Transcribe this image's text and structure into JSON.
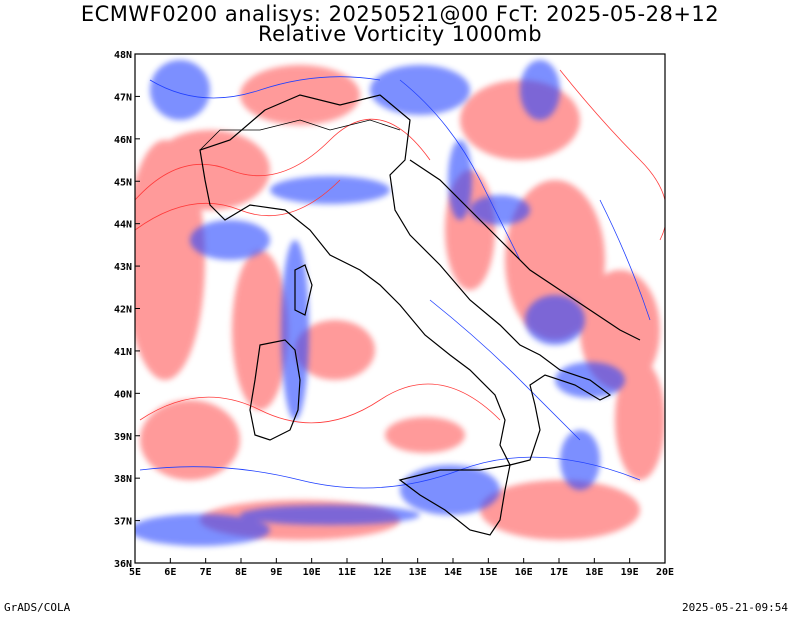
{
  "title_line1": "ECMWF0200 analisys: 20250521@00 FcT: 2025-05-28+12",
  "title_line2": "Relative Vorticity 1000mb",
  "footer_left": "GrADS/COLA",
  "footer_right": "2025-05-21-09:54",
  "lon_labels": [
    "5E",
    "6E",
    "7E",
    "8E",
    "9E",
    "10E",
    "11E",
    "12E",
    "13E",
    "14E",
    "15E",
    "16E",
    "17E",
    "18E",
    "19E",
    "20E"
  ],
  "lat_labels": [
    "48N",
    "47N",
    "46N",
    "45N",
    "44N",
    "43N",
    "42N",
    "41N",
    "40N",
    "39N",
    "38N",
    "37N",
    "36N"
  ],
  "colors": {
    "positive": "#ff3b3b",
    "negative": "#2040ff",
    "coast": "#000000"
  }
}
